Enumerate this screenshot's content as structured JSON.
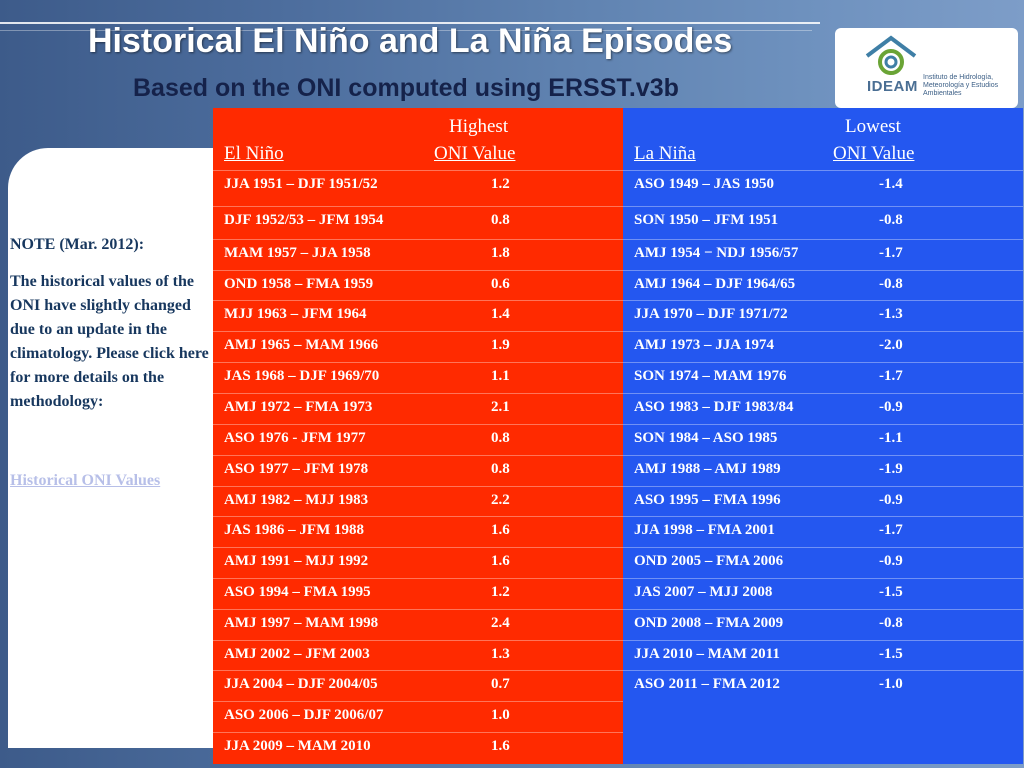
{
  "title": "Historical El Niño and La Niña Episodes",
  "subtitle": "Based on the ONI computed using ERSST.v3b",
  "logo": {
    "name": "IDEAM",
    "subtitle": "Instituto de Hidrología, Meteorología y Estudios Ambientales"
  },
  "note": {
    "heading": "NOTE (Mar. 2012):",
    "text": "The historical values of the ONI have slightly changed due to an update in the climatology. Please click here for more details on the methodology:",
    "link": "Historical ONI Values"
  },
  "el_nino": {
    "header_top": "Highest",
    "header_left": "El Niño",
    "header_right": "ONI Value",
    "rows": [
      {
        "period": "JJA 1951 – DJF 1951/52",
        "value": "1.2"
      },
      {
        "period": "DJF 1952/53 – JFM 1954",
        "value": "0.8"
      },
      {
        "period": "MAM 1957 – JJA 1958",
        "value": "1.8"
      },
      {
        "period": "OND 1958 – FMA 1959",
        "value": "0.6"
      },
      {
        "period": "MJJ 1963 – JFM 1964",
        "value": "1.4"
      },
      {
        "period": "AMJ 1965 – MAM 1966",
        "value": "1.9"
      },
      {
        "period": "JAS 1968 – DJF 1969/70",
        "value": "1.1"
      },
      {
        "period": "AMJ 1972 – FMA 1973",
        "value": "2.1"
      },
      {
        "period": "ASO 1976 - JFM 1977",
        "value": "0.8"
      },
      {
        "period": "ASO 1977 – JFM 1978",
        "value": "0.8"
      },
      {
        "period": "AMJ 1982 – MJJ 1983",
        "value": "2.2"
      },
      {
        "period": "JAS 1986 – JFM 1988",
        "value": "1.6"
      },
      {
        "period": "AMJ 1991 – MJJ 1992",
        "value": "1.6"
      },
      {
        "period": "ASO 1994 – FMA 1995",
        "value": "1.2"
      },
      {
        "period": "AMJ 1997 – MAM 1998",
        "value": "2.4"
      },
      {
        "period": "AMJ 2002 – JFM 2003",
        "value": "1.3"
      },
      {
        "period": "JJA 2004 – DJF 2004/05",
        "value": "0.7"
      },
      {
        "period": "ASO 2006 – DJF 2006/07",
        "value": "1.0"
      },
      {
        "period": "JJA 2009 – MAM 2010",
        "value": "1.6"
      }
    ]
  },
  "la_nina": {
    "header_top": "Lowest",
    "header_left": "La Niña",
    "header_right": "ONI Value",
    "rows": [
      {
        "period": "ASO 1949 – JAS 1950",
        "value": "-1.4"
      },
      {
        "period": "SON 1950 – JFM 1951",
        "value": "-0.8"
      },
      {
        "period": "AMJ 1954 − NDJ 1956/57",
        "value": "-1.7"
      },
      {
        "period": "AMJ 1964 – DJF 1964/65",
        "value": "-0.8"
      },
      {
        "period": "JJA 1970 – DJF 1971/72",
        "value": "-1.3"
      },
      {
        "period": "AMJ 1973 – JJA 1974",
        "value": "-2.0"
      },
      {
        "period": "SON 1974 – MAM 1976",
        "value": "-1.7"
      },
      {
        "period": "ASO 1983 – DJF 1983/84",
        "value": "-0.9"
      },
      {
        "period": "SON 1984 – ASO 1985",
        "value": "-1.1"
      },
      {
        "period": "AMJ 1988 – AMJ 1989",
        "value": "-1.9"
      },
      {
        "period": "ASO 1995 – FMA 1996",
        "value": "-0.9"
      },
      {
        "period": "JJA 1998 – FMA 2001",
        "value": "-1.7"
      },
      {
        "period": "OND 2005 – FMA 2006",
        "value": "-0.9"
      },
      {
        "period": "JAS 2007 – MJJ 2008",
        "value": "-1.5"
      },
      {
        "period": "OND 2008 – FMA 2009",
        "value": "-0.8"
      },
      {
        "period": "JJA 2010 – MAM 2011",
        "value": "-1.5"
      },
      {
        "period": "ASO 2011 – FMA 2012",
        "value": "-1.0"
      }
    ]
  },
  "colors": {
    "el_nino_panel": "#ff2a00",
    "la_nina_panel": "#2457f0",
    "note_text": "#17375e",
    "link": "#b7bfe8"
  }
}
